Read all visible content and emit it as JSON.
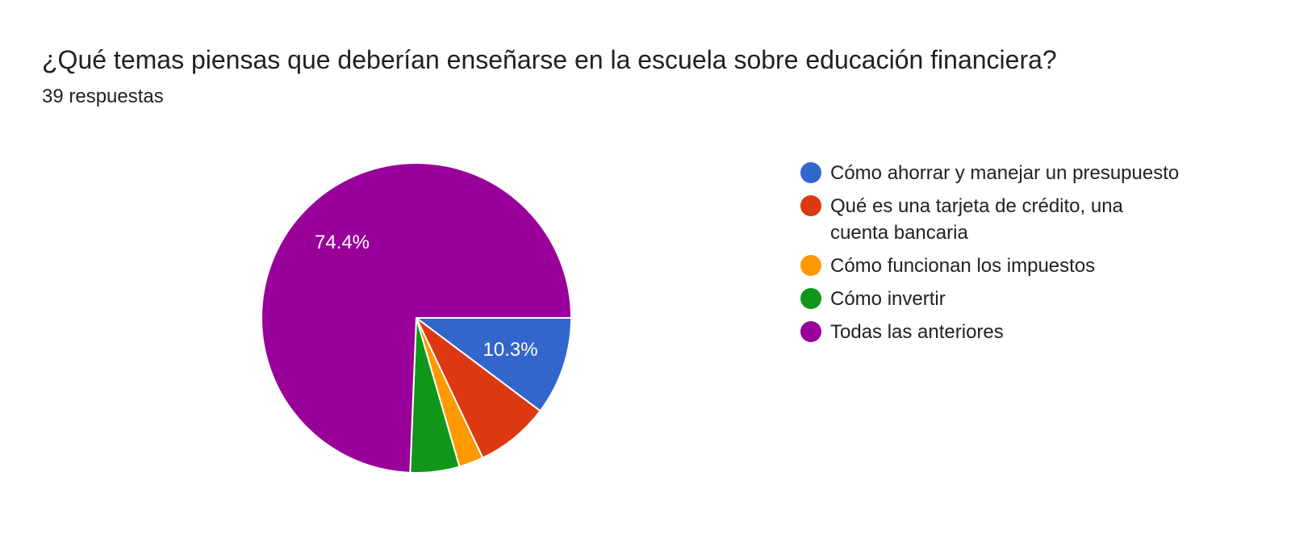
{
  "header": {
    "title": "¿Qué temas piensas que deberían enseñarse en la escuela sobre educación financiera?",
    "response_count": "39 respuestas"
  },
  "chart_data": {
    "type": "pie",
    "title": "¿Qué temas piensas que deberían enseñarse en la escuela sobre educación financiera?",
    "subtitle": "39 respuestas",
    "total": 39,
    "categories": [
      "Cómo ahorrar y manejar un presupuesto",
      "Qué es una tarjeta de crédito, una cuenta bancaria",
      "Cómo funcionan los impuestos",
      "Cómo invertir",
      "Todas las anteriores"
    ],
    "values": [
      4,
      3,
      1,
      2,
      29
    ],
    "percentages": [
      10.3,
      7.7,
      2.6,
      5.1,
      74.4
    ],
    "colors": [
      "#3366cc",
      "#dc3912",
      "#ff9900",
      "#109618",
      "#990099"
    ],
    "visible_labels": [
      "10.3%",
      "",
      "",
      "",
      "74.4%"
    ],
    "legend_position": "right",
    "start_angle_deg": 90,
    "direction": "clockwise"
  },
  "legend": {
    "items": [
      {
        "label": "Cómo ahorrar y manejar un presupuesto",
        "color": "#3366cc"
      },
      {
        "label": "Qué es una tarjeta de crédito, una cuenta bancaria",
        "color": "#dc3912"
      },
      {
        "label": "Cómo funcionan los impuestos",
        "color": "#ff9900"
      },
      {
        "label": "Cómo invertir",
        "color": "#109618"
      },
      {
        "label": "Todas las anteriores",
        "color": "#990099"
      }
    ]
  }
}
